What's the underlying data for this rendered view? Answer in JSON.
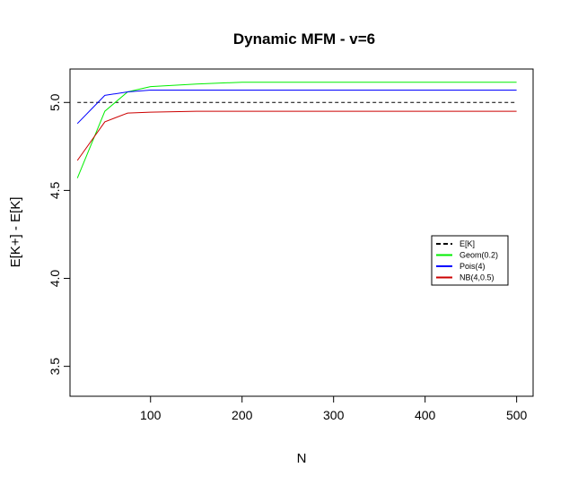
{
  "chart_data": {
    "type": "line",
    "title": "Dynamic MFM - v=6",
    "xlabel": "N",
    "ylabel": "E[K+] - E[K]",
    "xlim": [
      12,
      518
    ],
    "ylim": [
      3.33,
      5.19
    ],
    "xticks": [
      100,
      200,
      300,
      400,
      500
    ],
    "yticks": [
      3.5,
      4.0,
      4.5,
      5.0
    ],
    "legend_position": "center-right",
    "series": [
      {
        "name": "E[K]",
        "color": "#000000",
        "dashed": true,
        "x": [
          20,
          500
        ],
        "y": [
          5.0,
          5.0
        ]
      },
      {
        "name": "Geom(0.2)",
        "color": "#00ee00",
        "dashed": false,
        "x": [
          20,
          50,
          75,
          100,
          150,
          200,
          300,
          400,
          500
        ],
        "y": [
          4.57,
          4.95,
          5.06,
          5.09,
          5.105,
          5.115,
          5.115,
          5.115,
          5.115
        ]
      },
      {
        "name": "Pois(4)",
        "color": "#0000ff",
        "dashed": false,
        "x": [
          20,
          50,
          75,
          100,
          150,
          200,
          300,
          400,
          500
        ],
        "y": [
          4.88,
          5.04,
          5.06,
          5.07,
          5.07,
          5.07,
          5.07,
          5.07,
          5.07
        ]
      },
      {
        "name": "NB(4,0.5)",
        "color": "#cc0000",
        "dashed": false,
        "x": [
          20,
          50,
          75,
          100,
          150,
          200,
          300,
          400,
          500
        ],
        "y": [
          4.67,
          4.89,
          4.94,
          4.945,
          4.95,
          4.95,
          4.95,
          4.95,
          4.95
        ]
      }
    ]
  }
}
